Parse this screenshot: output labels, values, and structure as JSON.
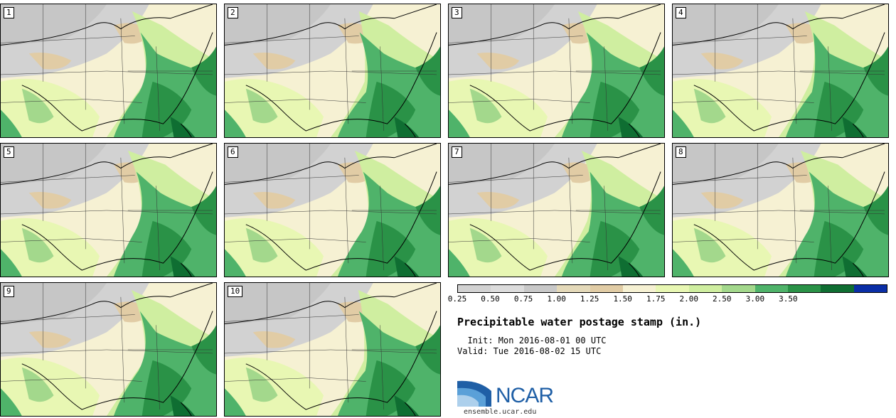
{
  "title": "Precipitable water postage stamp (in.)",
  "init": "  Init: Mon 2016-08-01 00 UTC",
  "valid": "Valid: Tue 2016-08-02 15 UTC",
  "members": [
    "1",
    "2",
    "3",
    "4",
    "5",
    "6",
    "7",
    "8",
    "9",
    "10"
  ],
  "colorbar": {
    "colors": [
      "#d2d2d2",
      "#dcdcdc",
      "#c8c8c8",
      "#e4d9b9",
      "#e1cca5",
      "#f6f1d3",
      "#e8f7b3",
      "#cfeea0",
      "#a3d88c",
      "#4fb36a",
      "#2a9247",
      "#0f6e32",
      "#0a2ea6"
    ],
    "ticks": [
      "0.25",
      "0.50",
      "0.75",
      "1.00",
      "1.25",
      "1.50",
      "1.75",
      "2.00",
      "2.50",
      "3.00",
      "3.50"
    ]
  },
  "logo": {
    "name": "NCAR",
    "url": "ensemble.ucar.edu"
  }
}
